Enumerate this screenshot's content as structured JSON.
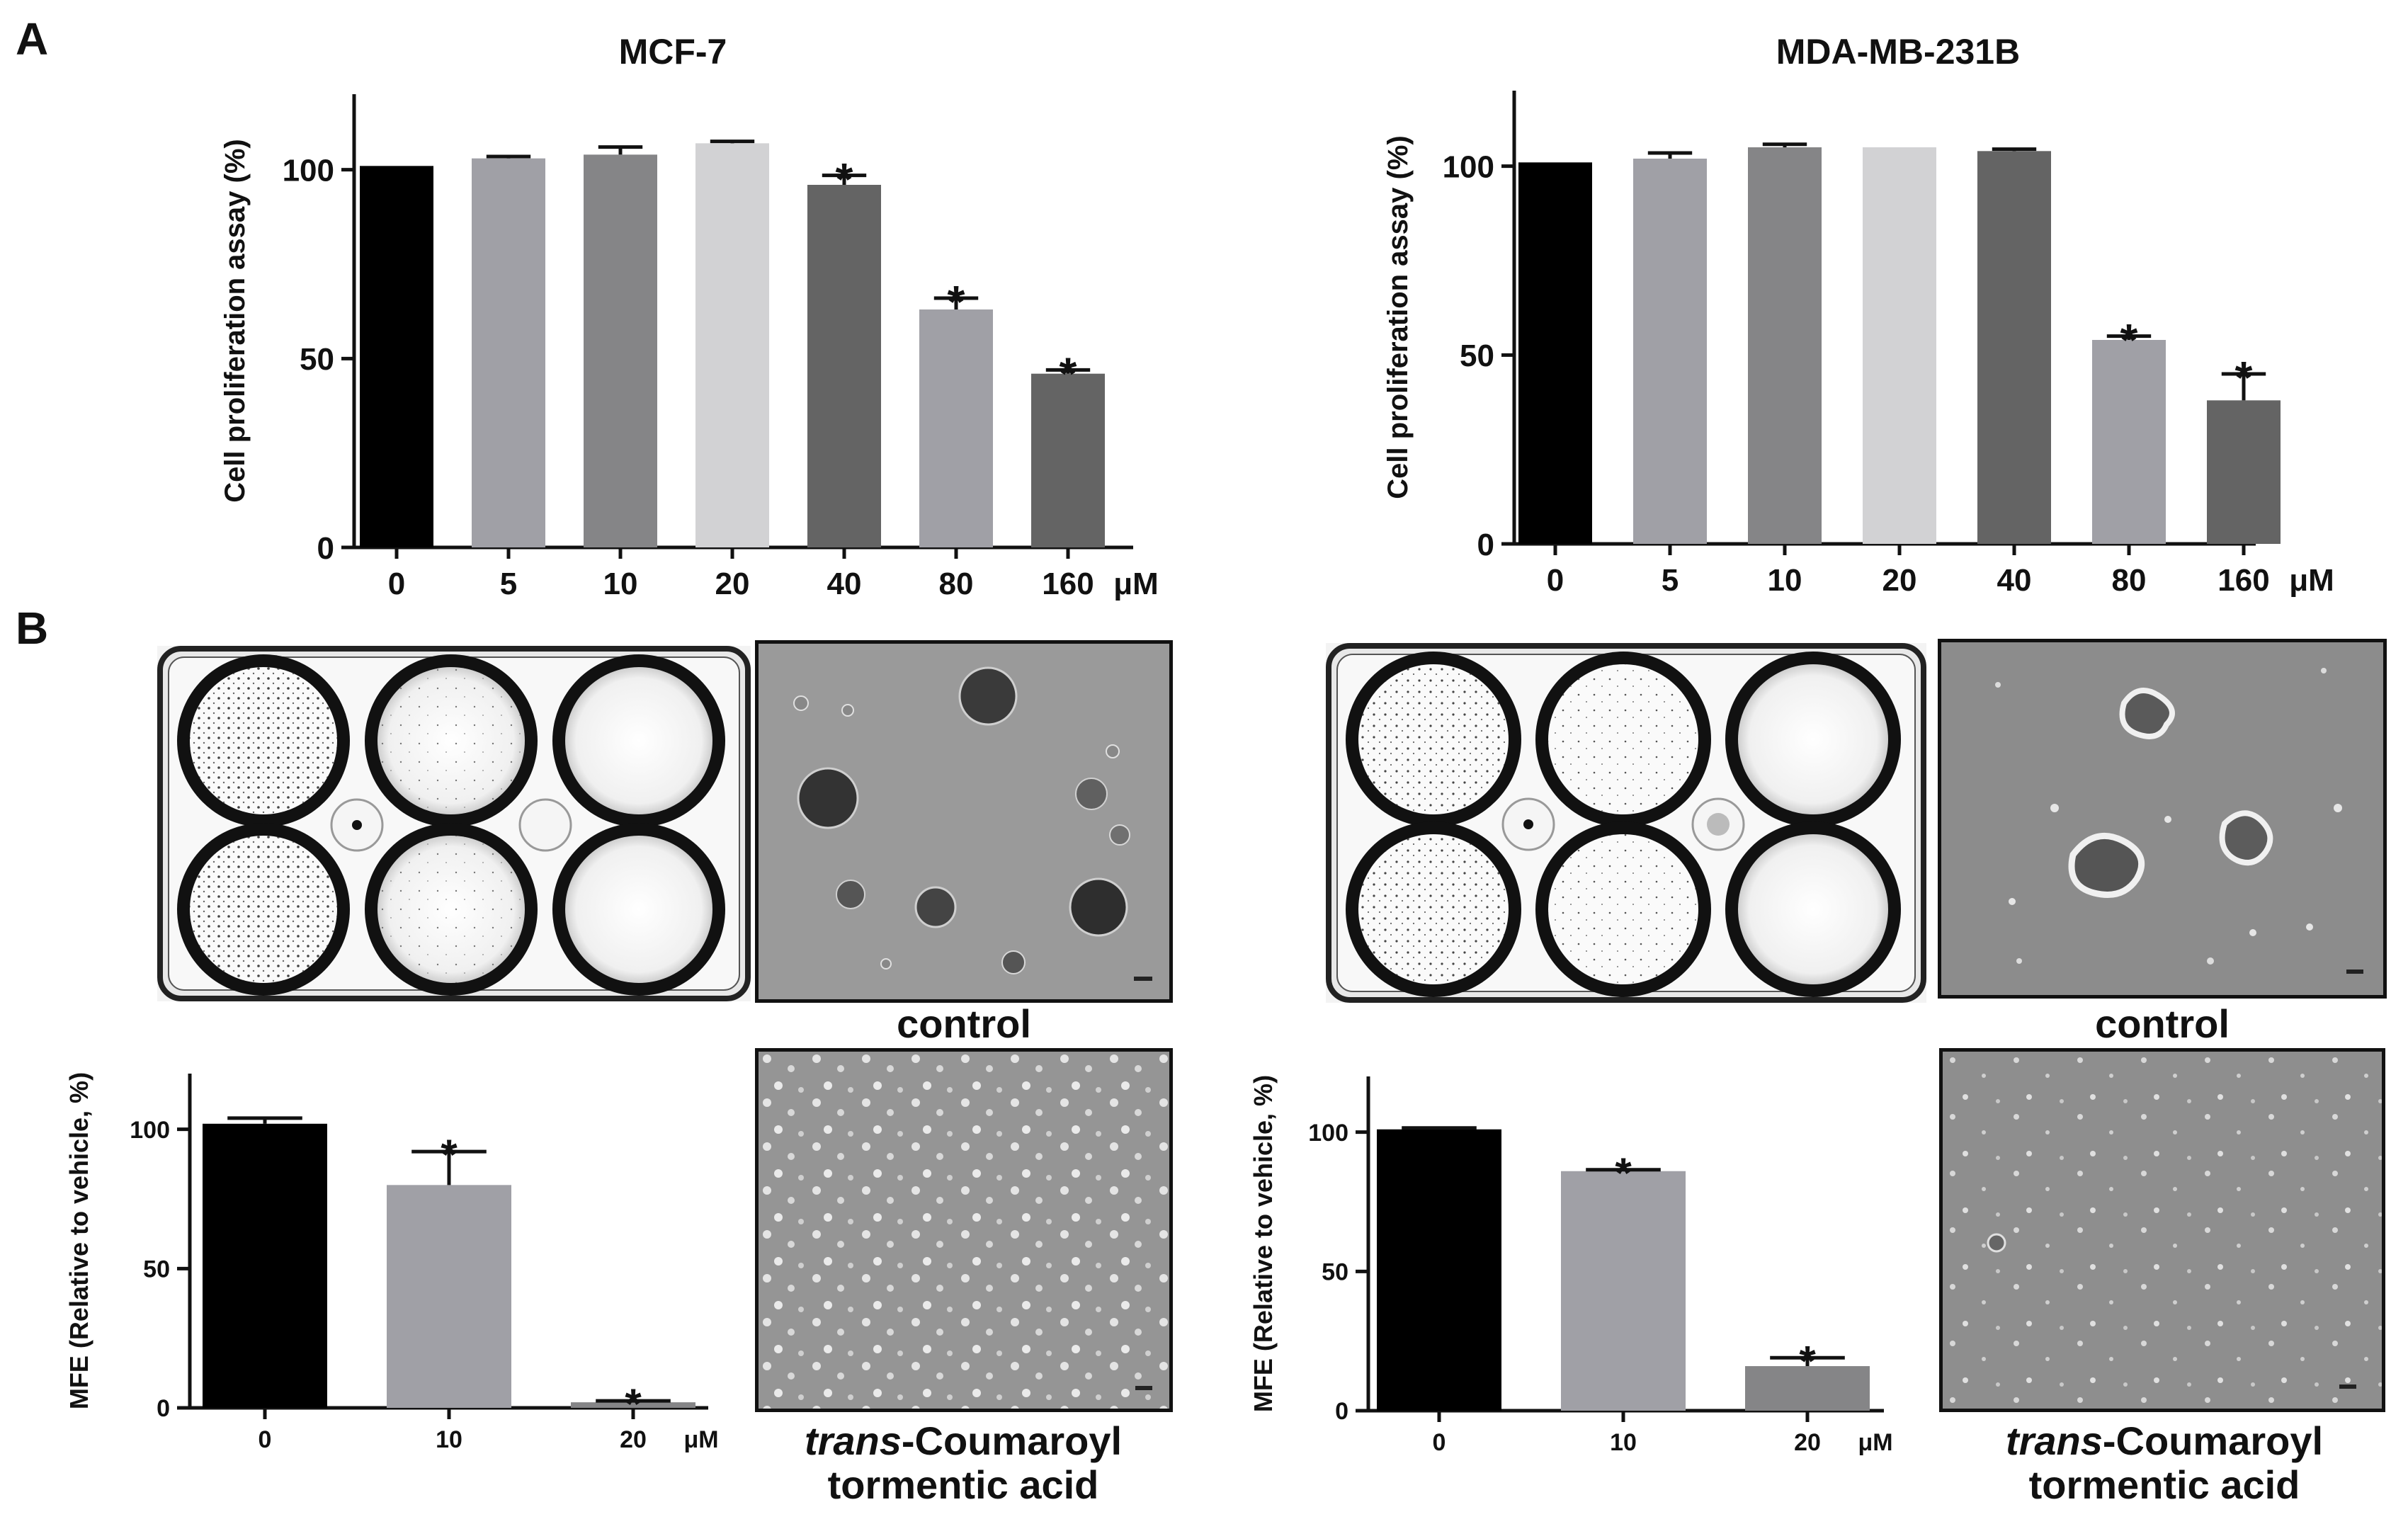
{
  "panels": {
    "a": "A",
    "b": "B"
  },
  "microscopy": {
    "left": {
      "control": "control",
      "treated_italic": "trans",
      "treated_rest": "-Coumaroyl",
      "treated_line2": "tormentic acid"
    },
    "right": {
      "control": "control",
      "treated_italic": "trans",
      "treated_rest": "-Coumaroyl",
      "treated_line2": "tormentic acid"
    }
  },
  "colors": {
    "black": "#000000",
    "gray_mid": "#a0a0a6",
    "gray_dark": "#858587",
    "gray_light": "#d2d2d4",
    "gray_darker": "#646464"
  },
  "chart_data": [
    {
      "id": "a-left",
      "type": "bar",
      "title": "MCF-7",
      "ylabel": "Cell proliferation assay (%)",
      "xunit": "μM",
      "categories": [
        "0",
        "5",
        "10",
        "20",
        "40",
        "80",
        "160"
      ],
      "values": [
        101,
        103,
        104,
        107,
        96,
        63,
        46
      ],
      "errors": [
        0,
        0.5,
        2,
        0.5,
        2.5,
        3,
        1
      ],
      "significant": [
        false,
        false,
        false,
        false,
        true,
        true,
        true
      ],
      "yticks": [
        0,
        50,
        100
      ],
      "ylim": [
        0,
        120
      ],
      "bar_colors": [
        "#000000",
        "#a0a0a6",
        "#858587",
        "#d2d2d4",
        "#646464",
        "#a0a0a6",
        "#646464"
      ]
    },
    {
      "id": "a-right",
      "type": "bar",
      "title": "MDA-MB-231B",
      "ylabel": "Cell proliferation assay (%)",
      "xunit": "μM",
      "categories": [
        "0",
        "5",
        "10",
        "20",
        "40",
        "80",
        "160"
      ],
      "values": [
        101,
        102,
        105,
        105,
        104,
        54,
        38
      ],
      "errors": [
        0,
        1.5,
        0.8,
        0,
        0.5,
        1,
        7
      ],
      "significant": [
        false,
        false,
        false,
        false,
        false,
        true,
        true
      ],
      "yticks": [
        0,
        50,
        100
      ],
      "ylim": [
        0,
        120
      ],
      "bar_colors": [
        "#000000",
        "#a0a0a6",
        "#858587",
        "#d2d2d4",
        "#646464",
        "#a0a0a6",
        "#646464"
      ]
    },
    {
      "id": "b-left",
      "type": "bar",
      "ylabel": "MFE (Relative to vehicle, %)",
      "xunit": "μM",
      "categories": [
        "0",
        "10",
        "20"
      ],
      "values": [
        102,
        80,
        2
      ],
      "errors": [
        2,
        12,
        0.5
      ],
      "significant": [
        false,
        true,
        true
      ],
      "yticks": [
        0,
        50,
        100
      ],
      "ylim": [
        0,
        120
      ],
      "bar_colors": [
        "#000000",
        "#a0a0a6",
        "#858587"
      ]
    },
    {
      "id": "b-right",
      "type": "bar",
      "ylabel": "MFE (Relative to vehicle, %)",
      "xunit": "μM",
      "categories": [
        "0",
        "10",
        "20"
      ],
      "values": [
        101,
        86,
        16
      ],
      "errors": [
        0.5,
        0.5,
        3
      ],
      "significant": [
        false,
        true,
        true
      ],
      "yticks": [
        0,
        50,
        100
      ],
      "ylim": [
        0,
        120
      ],
      "bar_colors": [
        "#000000",
        "#a0a0a6",
        "#858587"
      ]
    }
  ]
}
